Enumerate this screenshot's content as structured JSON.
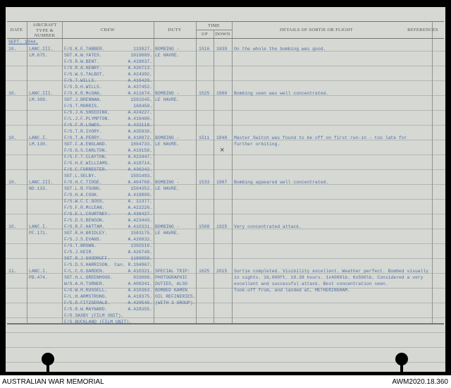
{
  "headers": {
    "date": "Date",
    "aircraft": "Aircraft Type & Number",
    "crew": "Crew",
    "duty": "Duty",
    "time": "Time",
    "up": "Up",
    "down": "Down",
    "details": "Details of Sortie or Flight",
    "references": "References"
  },
  "month": "SEPT. 1944.",
  "sorties": [
    {
      "date": "10.",
      "aircraft": [
        "LANC.III.",
        "LM.675."
      ],
      "crew": [
        [
          "F/O.K.E.TABBER.",
          "133827."
        ],
        [
          "SGT.K.W.YATES.",
          "1819889."
        ],
        [
          "F/S.R.W.BENT.",
          "A.418037."
        ],
        [
          "F/S.R.A.HENRY.",
          "A.420713."
        ],
        [
          "F/S.W.S.TALBOT.",
          "A.424392."
        ],
        [
          "F/S.T.WILLS.",
          "A.419429."
        ],
        [
          "F/S.D.H.WILLS.",
          "A.437452."
        ]
      ],
      "duty": [
        "BOMBING -",
        "LE HAVRE."
      ],
      "up": "1516",
      "down": "1839",
      "details": [
        "On the whole the bombing was good."
      ]
    },
    {
      "date": "10.",
      "aircraft": [
        "LANC.III.",
        "LM.309."
      ],
      "crew": [
        [
          "F/O.K.R.McGAN.",
          "A.411674."
        ],
        [
          "SGT.J.BRENNAN.",
          "1591545."
        ],
        [
          "F/S.T.MORRIS.",
          "169450."
        ],
        [
          "F/S.J.K.SHEEDING.",
          "A.424227."
        ],
        [
          "F/L.J.F.PLYMPTON.",
          "A.419480."
        ],
        [
          "F/S.F.R.LOWES.",
          "A.433118."
        ],
        [
          "F/S.T.R.IVORY.",
          "A.435930."
        ]
      ],
      "duty": [
        "BOMBING -",
        "LE HAVRE."
      ],
      "up": "1525",
      "down": "1900",
      "details": [
        "Bombing seen was well concentrated."
      ]
    },
    {
      "date": "10.",
      "aircraft": [
        "LANC.I.",
        "LM.130."
      ],
      "crew": [
        [
          "F/O.T.A.PERRY.",
          "A.418872."
        ],
        [
          "SGT.F.A.ENGLAND.",
          "1894733."
        ],
        [
          "F/S.G.S.CARLTON.",
          "A.419158."
        ],
        [
          "F/S.F.T.CLAYTON.",
          "A.423447."
        ],
        [
          "F/S.H.E.WILLIAMS.",
          "A.418714."
        ],
        [
          "F/S.C.FORRESTER.",
          "A.436242."
        ],
        [
          "SGT.L.SELBY.",
          "1591493."
        ]
      ],
      "duty": [
        "BOMBING -",
        "LE HAVRE."
      ],
      "up": "1511",
      "down": "1848",
      "details": [
        "Master Switch was found to be off on first run-in -  too late for",
        "further orbiting."
      ]
    },
    {
      "date": "10.",
      "aircraft": [
        "LANC.III.",
        "ND.133."
      ],
      "crew": [
        [
          "F/O.H.C.TIDGE.",
          "A.404768."
        ],
        [
          "SGT.L.B.YOUNG.",
          "1594352."
        ],
        [
          "F/S.H.A.COOK.",
          "A.418809."
        ],
        [
          "F/S.W.C.C.GOSS.",
          "A. 11377."
        ],
        [
          "F/S.F.R.McLEAN.",
          "A.422226."
        ],
        [
          "F/S.E.L.COURTNEY.",
          "A.436427."
        ],
        [
          "F/S.D.S.BENSON.",
          "A.423443."
        ]
      ],
      "duty": [
        "BOMBING -",
        "LE HAVRE."
      ],
      "up": "1533",
      "down": "1907",
      "details": [
        "Bombing appeared well concentrated."
      ]
    },
    {
      "date": "10.",
      "aircraft": [
        "LANC.I.",
        "PF.171."
      ],
      "crew": [
        [
          "F/O.R.F.HATTAM.",
          "A.410331."
        ],
        [
          "SGT.R.H.BRIDLEY.",
          "1583175."
        ],
        [
          "F/S.J.S.EVANS.",
          "A.426832."
        ],
        [
          "F/S.T.BROWN.",
          "1392516."
        ],
        [
          "F/S.J.KEIR.",
          "A.426749."
        ],
        [
          "SGT.R.J.GOODRUFF.",
          "1189058."
        ],
        [
          "F/S.D.S.HARRISON.",
          "Can. R.194967."
        ]
      ],
      "duty": [
        "BOMBING -",
        "LE HAVRE."
      ],
      "up": "1508",
      "down": "1925",
      "details": [
        "Very concentrated attack."
      ]
    },
    {
      "date": "11.",
      "aircraft": [
        "LANC.I.",
        "PB.474."
      ],
      "crew": [
        [
          "F/L.C.G.GARDEN.",
          "A.410321."
        ],
        [
          "SGT.H.L.GREENHOOD.",
          "933009."
        ],
        [
          "W/O.A.H.TURNER.",
          "A.408341."
        ],
        [
          "F/O.W.H.RUSSELL.",
          "A.410363."
        ],
        [
          "F/L.H.ARMSTRONG.",
          "A.419375."
        ],
        [
          "F/S.D.FITZGERALD.",
          "A.429545."
        ],
        [
          "F/S.R.W.MAYNARD.",
          "A.428355."
        ],
        [
          "F/O.SAXBY (FILM UNIT).",
          ""
        ],
        [
          "F/S.BUCKLAND (FILM UNIT).",
          ""
        ]
      ],
      "duty": [
        "SPECIAL TRIP:",
        "PHOTOGRAPHIC",
        "DUTIES, ALSO",
        "BOMBED KAMEN",
        "OIL REFINERIES.",
        "(WITH 3 GROUP)."
      ],
      "up": "1625",
      "down": "2015",
      "details": [
        "Sortie completed. Visibility excellent. Weather perfect. Bombed visually",
        "in sights. 16,000ft. 18.38 hours. 1x4000lb. 6x500lb. Considered a very",
        "excellent and successful attack.  Best concentration seen.",
        "Took-off from, and landed at, METHERINGHAM."
      ]
    }
  ],
  "caption": {
    "left": "AUSTRALIAN WAR MEMORIAL",
    "right": "AWM2020.18.360"
  }
}
